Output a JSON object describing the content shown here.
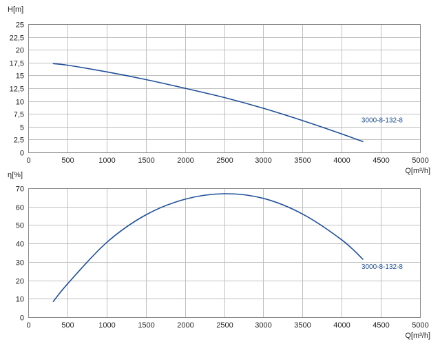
{
  "chart_data": [
    {
      "type": "line",
      "ylabel": "H[m]",
      "xlabel": "Q[m³/h]",
      "xlim": [
        0,
        5000
      ],
      "ylim": [
        0,
        25
      ],
      "x_ticks": [
        "0",
        "500",
        "1000",
        "1500",
        "2000",
        "2500",
        "3000",
        "3500",
        "4000",
        "4500",
        "5000"
      ],
      "y_ticks": [
        "0",
        "2,5",
        "5",
        "7,5",
        "10",
        "12,5",
        "15",
        "17,5",
        "20",
        "22,5",
        "25"
      ],
      "grid": true,
      "series": [
        {
          "name": "3000-8-132-8",
          "color": "#1f4e99",
          "x": [
            320,
            500,
            1000,
            1500,
            2000,
            2500,
            3000,
            3500,
            4000,
            4270
          ],
          "y": [
            17.3,
            17.0,
            15.7,
            14.2,
            12.5,
            10.7,
            8.6,
            6.2,
            3.6,
            2.1
          ]
        }
      ]
    },
    {
      "type": "line",
      "ylabel": "η[%]",
      "xlabel": "Q[m³/h]",
      "xlim": [
        0,
        5000
      ],
      "ylim": [
        0,
        70
      ],
      "x_ticks": [
        "0",
        "500",
        "1000",
        "1500",
        "2000",
        "2500",
        "3000",
        "3500",
        "4000",
        "4500",
        "5000"
      ],
      "y_ticks": [
        "0",
        "10",
        "20",
        "30",
        "40",
        "50",
        "60",
        "70"
      ],
      "grid": true,
      "series": [
        {
          "name": "3000-8-132-8",
          "color": "#1f4e99",
          "x": [
            320,
            500,
            1000,
            1500,
            2000,
            2500,
            3000,
            3500,
            4000,
            4270
          ],
          "y": [
            8.5,
            18.0,
            40.5,
            55.5,
            64.0,
            67.0,
            64.5,
            56.0,
            42.0,
            31.5
          ]
        }
      ]
    }
  ]
}
